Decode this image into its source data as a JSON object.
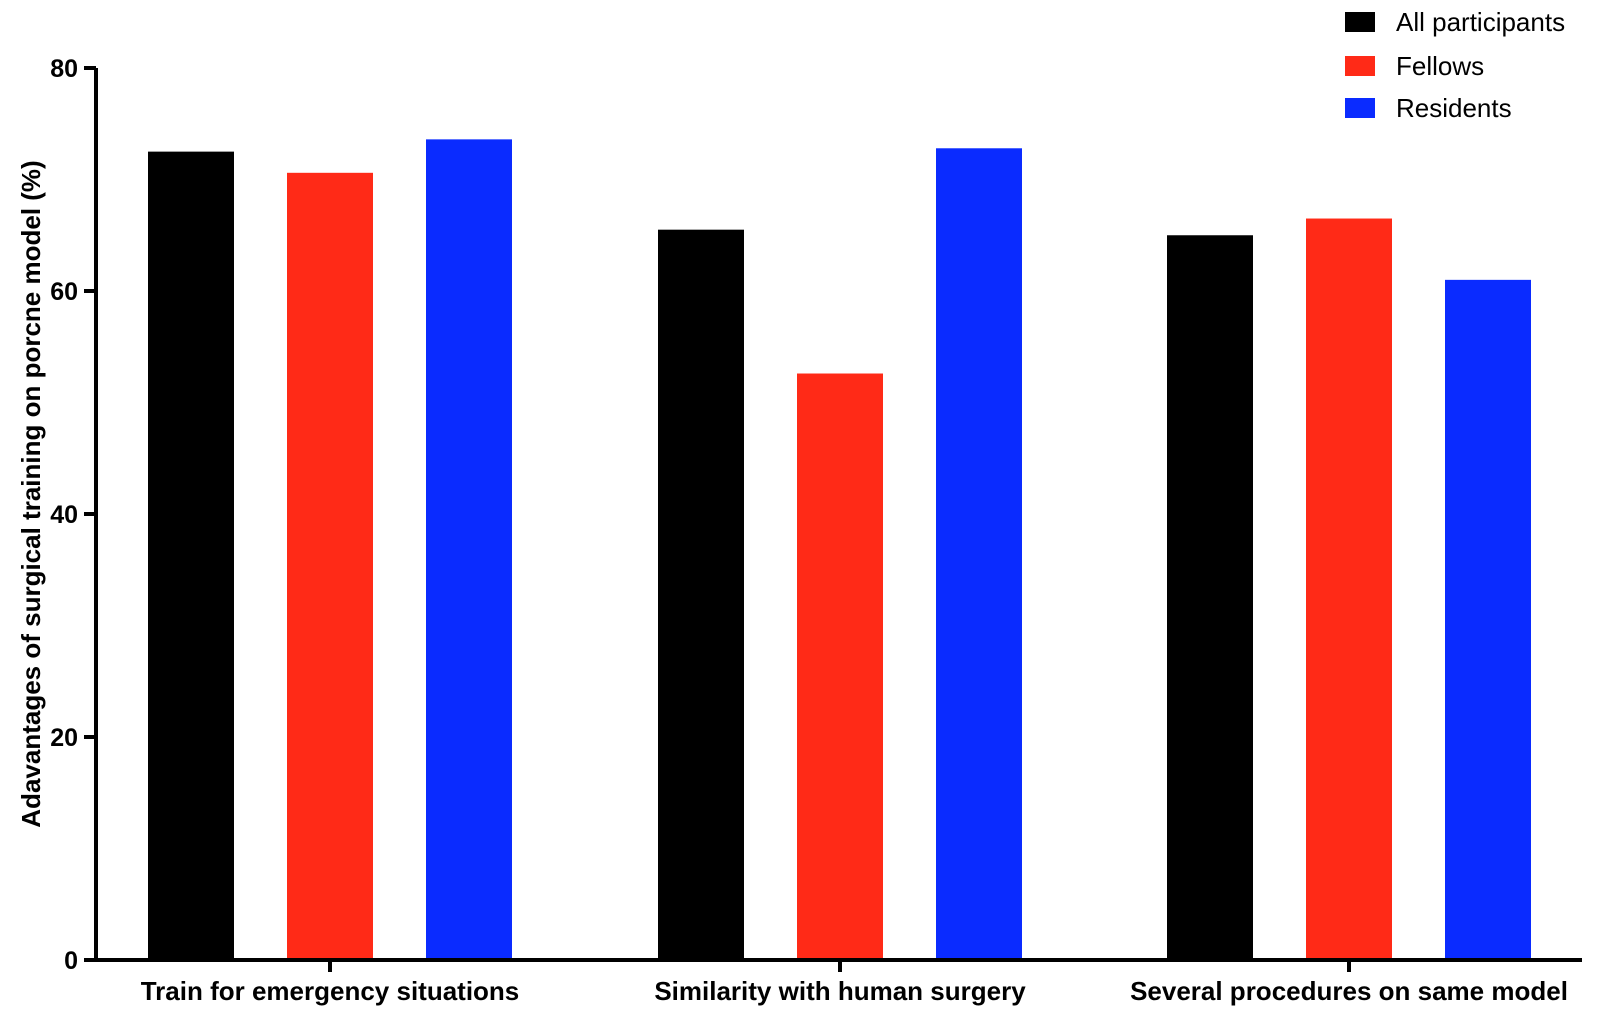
{
  "chart_data": {
    "type": "bar",
    "categories": [
      "Train for emergency situations",
      "Similarity with human surgery",
      "Several procedures on same model"
    ],
    "series": [
      {
        "name": "All participants",
        "color": "#000000",
        "values": [
          72.5,
          65.5,
          65
        ]
      },
      {
        "name": "Fellows",
        "color": "#ff2a17",
        "values": [
          70.6,
          52.6,
          66.5
        ]
      },
      {
        "name": "Residents",
        "color": "#0a2bff",
        "values": [
          73.6,
          72.8,
          61
        ]
      }
    ],
    "title": "",
    "xlabel": "",
    "ylabel": "Adavantages of surgical training on porcne model (%)",
    "ylim": [
      0,
      80
    ],
    "yticks": [
      0,
      20,
      40,
      60,
      80
    ],
    "grid": false,
    "legend_position": "top-right"
  }
}
